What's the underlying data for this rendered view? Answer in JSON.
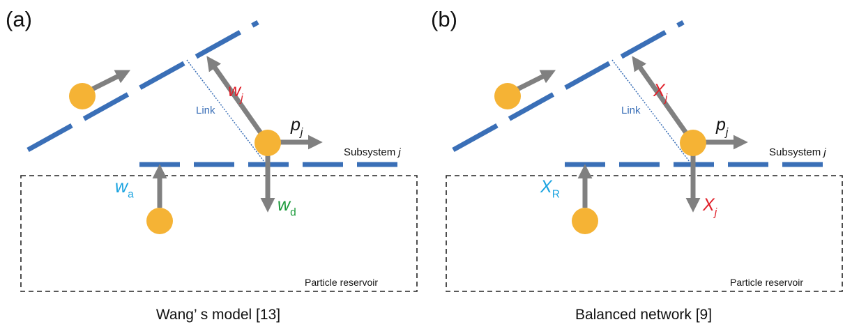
{
  "panels": [
    {
      "tag": "(a)",
      "link": "Link",
      "up": {
        "symbol": "w",
        "sub": "j"
      },
      "p": {
        "symbol": "p",
        "sub": "j"
      },
      "subsystem": {
        "text": "Subsystem",
        "sub": "j"
      },
      "in": {
        "symbol": "w",
        "sub": "a"
      },
      "out": {
        "symbol": "w",
        "sub": "d"
      },
      "reservoir": "Particle reservoir",
      "caption": "Wang’ s model [13]"
    },
    {
      "tag": "(b)",
      "link": "Link",
      "up": {
        "symbol": "X",
        "sub": "j"
      },
      "p": {
        "symbol": "p",
        "sub": "j"
      },
      "subsystem": {
        "text": "Subsystem",
        "sub": "j"
      },
      "in": {
        "symbol": "X",
        "sub": "R"
      },
      "out": {
        "symbol": "X",
        "sub": "j"
      },
      "reservoir": "Particle reservoir",
      "caption": "Balanced network [9]"
    }
  ]
}
